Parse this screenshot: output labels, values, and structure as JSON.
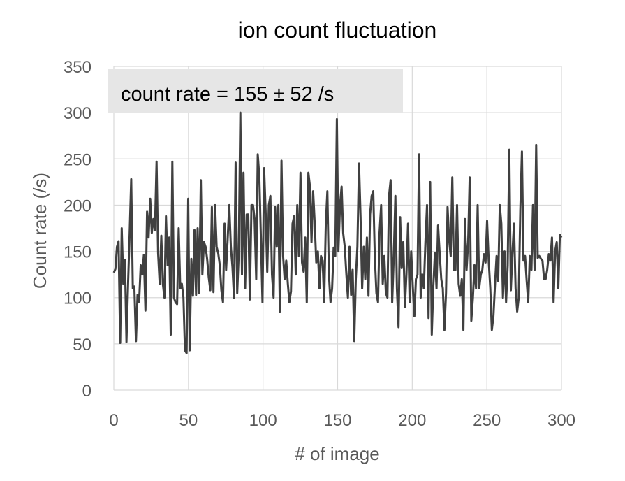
{
  "chart_data": {
    "type": "line",
    "title": "ion count fluctuation",
    "xlabel": "# of image",
    "ylabel": "Count rate (/s)",
    "xlim": [
      0,
      300
    ],
    "ylim": [
      0,
      350
    ],
    "xticks": [
      0,
      50,
      100,
      150,
      200,
      250,
      300
    ],
    "yticks": [
      0,
      50,
      100,
      150,
      200,
      250,
      300,
      350
    ],
    "grid": true,
    "legend": "none",
    "annotation": "count rate = 155 ± 52 /s",
    "colors": {
      "line": "#404040",
      "annotation_box": "#e6e6e6",
      "grid": "#d9d9d9",
      "tick_text": "#595959"
    },
    "series": [
      {
        "values": [
          127,
          131,
          155,
          161,
          51,
          175,
          115,
          141,
          52,
          115,
          170,
          228,
          110,
          112,
          53,
          103,
          95,
          135,
          125,
          146,
          86,
          193,
          165,
          207,
          170,
          185,
          173,
          247,
          148,
          115,
          167,
          115,
          100,
          188,
          135,
          165,
          60,
          247,
          100,
          95,
          93,
          175,
          110,
          115,
          100,
          43,
          40,
          207,
          43,
          142,
          102,
          173,
          103,
          175,
          105,
          227,
          125,
          160,
          155,
          142,
          122,
          108,
          198,
          106,
          200,
          155,
          148,
          135,
          108,
          95,
          180,
          130,
          165,
          200,
          155,
          133,
          100,
          246,
          105,
          148,
          300,
          125,
          235,
          110,
          190,
          190,
          98,
          200,
          200,
          185,
          120,
          255,
          230,
          165,
          95,
          240,
          193,
          128,
          200,
          210,
          125,
          100,
          198,
          155,
          200,
          85,
          248,
          145,
          120,
          140,
          115,
          95,
          107,
          180,
          188,
          125,
          200,
          145,
          235,
          138,
          128,
          165,
          95,
          235,
          220,
          160,
          215,
          180,
          138,
          150,
          110,
          145,
          140,
          95,
          178,
          215,
          125,
          95,
          110,
          154,
          145,
          293,
          150,
          200,
          220,
          170,
          155,
          125,
          100,
          155,
          103,
          130,
          53,
          120,
          155,
          245,
          188,
          110,
          155,
          120,
          165,
          102,
          190,
          210,
          215,
          145,
          105,
          95,
          170,
          200,
          115,
          145,
          105,
          100,
          210,
          227,
          95,
          145,
          210,
          110,
          68,
          187,
          132,
          160,
          90,
          125,
          180,
          95,
          150,
          112,
          80,
          120,
          125,
          255,
          100,
          125,
          110,
          160,
          200,
          78,
          225,
          60,
          112,
          148,
          110,
          178,
          148,
          120,
          110,
          65,
          105,
          198,
          162,
          145,
          230,
          130,
          130,
          200,
          115,
          102,
          120,
          65,
          185,
          130,
          160,
          230,
          75,
          100,
          135,
          110,
          200,
          110,
          125,
          130,
          147,
          138,
          183,
          140,
          110,
          65,
          80,
          115,
          145,
          118,
          200,
          180,
          100,
          150,
          95,
          135,
          260,
          108,
          148,
          180,
          110,
          85,
          100,
          195,
          258,
          140,
          145,
          118,
          95,
          145,
          130,
          200,
          130,
          265,
          143,
          145,
          142,
          140,
          120,
          120,
          130,
          147,
          140,
          165,
          95,
          150,
          160,
          110,
          168,
          165
        ]
      }
    ]
  }
}
